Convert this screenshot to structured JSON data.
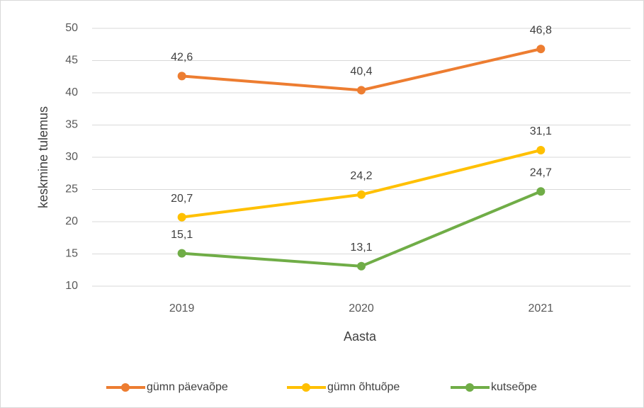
{
  "chart_data": {
    "type": "line",
    "x_label": "Aasta",
    "y_label": "keskmine tulemus",
    "categories": [
      "2019",
      "2020",
      "2021"
    ],
    "series": [
      {
        "name": "gümn päevaõpe",
        "color": "#ED7D31",
        "values": [
          42.6,
          40.4,
          46.8
        ],
        "value_labels": [
          "42,6",
          "40,4",
          "46,8"
        ]
      },
      {
        "name": "gümn õhtuõpe",
        "color": "#FFC000",
        "values": [
          20.7,
          24.2,
          31.1
        ],
        "value_labels": [
          "20,7",
          "24,2",
          "31,1"
        ]
      },
      {
        "name": "kutseõpe",
        "color": "#70AD47",
        "values": [
          15.1,
          13.1,
          24.7
        ],
        "value_labels": [
          "15,1",
          "13,1",
          "24,7"
        ]
      }
    ],
    "ylim": [
      10,
      50
    ],
    "yticks": [
      10,
      15,
      20,
      25,
      30,
      35,
      40,
      45,
      50
    ],
    "grid": true,
    "legend": "bottom"
  }
}
